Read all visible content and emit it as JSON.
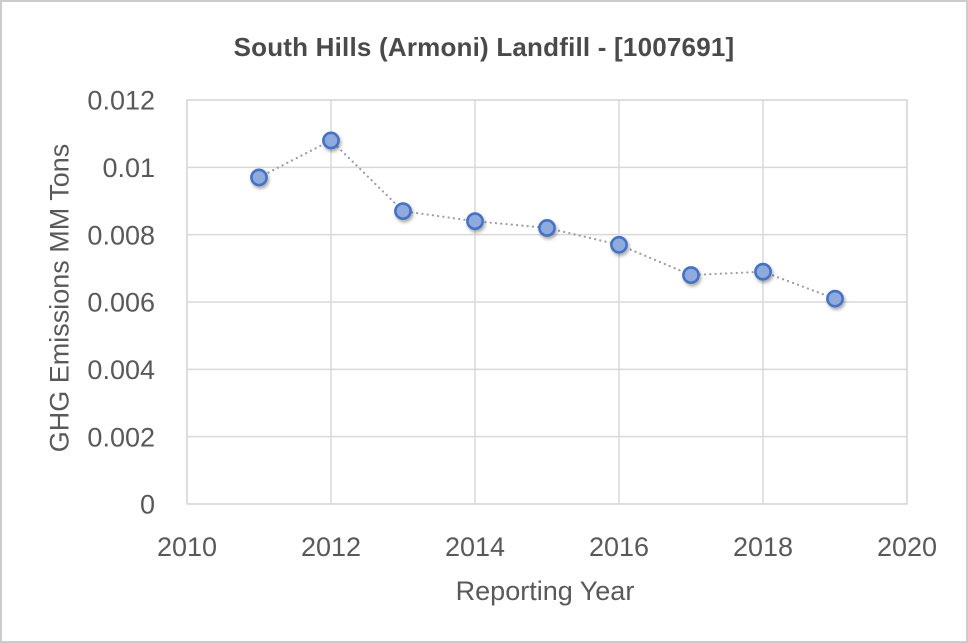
{
  "chart_data": {
    "type": "line",
    "title": "South Hills (Armoni) Landfill - [1007691]",
    "xlabel": "Reporting Year",
    "ylabel": "GHG Emissions MM Tons",
    "x": [
      2011,
      2012,
      2013,
      2014,
      2015,
      2016,
      2017,
      2018,
      2019
    ],
    "values": [
      0.0097,
      0.0108,
      0.0087,
      0.0084,
      0.0082,
      0.0077,
      0.0068,
      0.0069,
      0.0061
    ],
    "series": [
      {
        "name": "GHG Emissions",
        "values": [
          0.0097,
          0.0108,
          0.0087,
          0.0084,
          0.0082,
          0.0077,
          0.0068,
          0.0069,
          0.0061
        ]
      }
    ],
    "xlim": [
      2010,
      2020
    ],
    "ylim": [
      0,
      0.012
    ],
    "xticks": [
      2010,
      2012,
      2014,
      2016,
      2018,
      2020
    ],
    "xtick_labels": [
      "2010",
      "2012",
      "2014",
      "2016",
      "2018",
      "2020"
    ],
    "yticks": [
      0,
      0.002,
      0.004,
      0.006,
      0.008,
      0.01,
      0.012
    ],
    "ytick_labels": [
      "0",
      "0.002",
      "0.004",
      "0.006",
      "0.008",
      "0.01",
      "0.012"
    ],
    "grid": true,
    "legend_position": "none",
    "line_style": "dotted",
    "marker": "circle",
    "colors": {
      "marker_fill": "#8FAADC",
      "marker_stroke": "#4472C4",
      "line": "#9E9E9E",
      "grid": "#D9D9D9",
      "tick_text": "#595959",
      "title_text": "#4A4A4A",
      "background": "#FFFFFF",
      "frame_border": "#CCCCCC"
    }
  }
}
